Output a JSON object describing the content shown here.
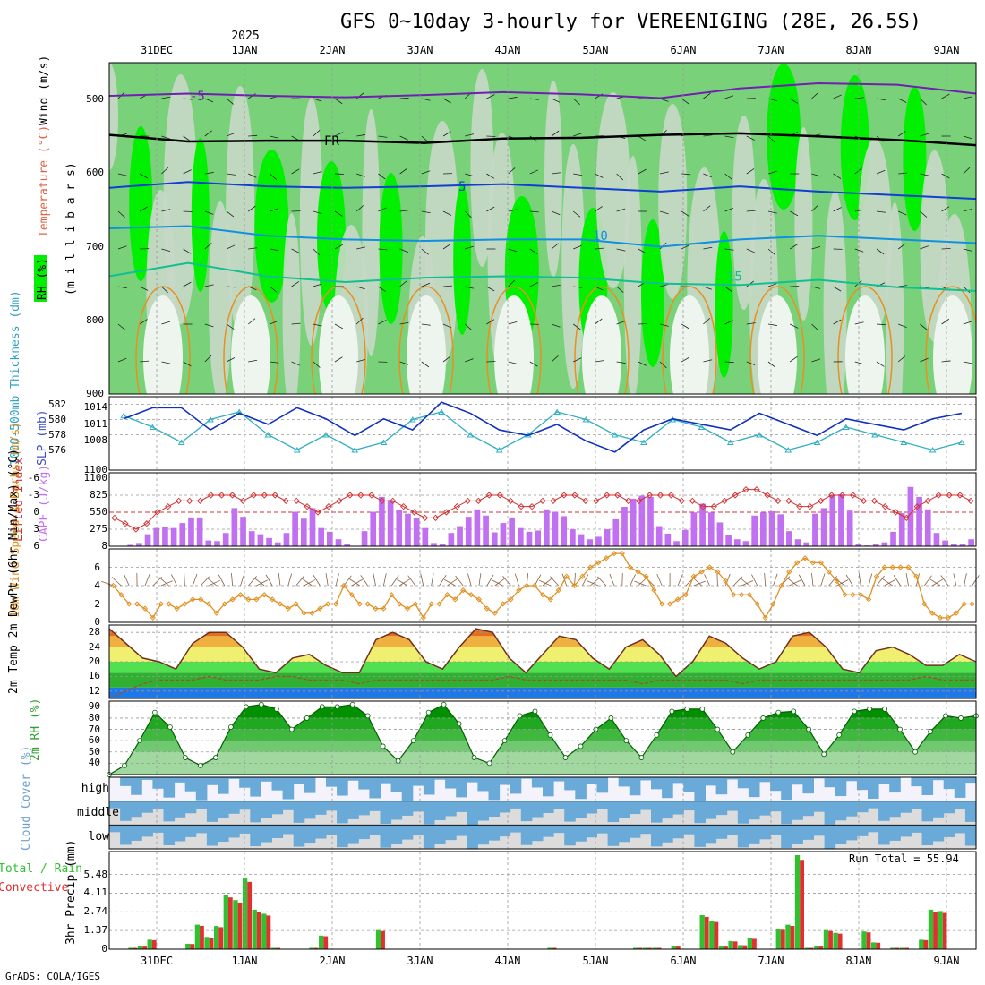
{
  "title": "GFS 0~10day 3-hourly for VEREENIGING (28E, 26.5S)",
  "year_label": "2025",
  "footer": "GrADS: COLA/IGES",
  "run_total_label": "Run Total = 55.94",
  "days": [
    "31DEC",
    "1JAN",
    "2JAN",
    "3JAN",
    "4JAN",
    "5JAN",
    "6JAN",
    "7JAN",
    "8JAN",
    "9JAN"
  ],
  "colors": {
    "rh_green": "#79d27a",
    "rh_bright": "#00f000",
    "rh_light": "#c8d8c8",
    "cape": "#c070f0",
    "slp": "#1030c0",
    "thick": "#30b0c0",
    "li": "#d03030",
    "wind": "#e09020",
    "rain": "#30c030",
    "conv": "#e03030",
    "cloud": "#6aaad8"
  },
  "chart_data": [
    {
      "type": "heatmap",
      "panel": "upper_air",
      "ylabel": "(m i l l i b a r s)",
      "ylabel_parts": [
        "RH (%)",
        "Temperature (°C)",
        "Wind (m/s)"
      ],
      "yticks": [
        500,
        600,
        700,
        800,
        900
      ],
      "ylim": [
        450,
        900
      ],
      "contours": [
        {
          "label": "-5",
          "values": [
            495,
            492,
            495,
            497,
            494,
            490,
            493,
            498,
            485,
            478,
            480,
            492
          ]
        },
        {
          "label": "FR",
          "values": [
            548,
            557,
            556,
            556,
            559,
            553,
            552,
            548,
            546,
            550,
            555,
            562
          ]
        },
        {
          "label": "5",
          "values": [
            620,
            612,
            618,
            620,
            618,
            615,
            620,
            625,
            618,
            625,
            630,
            635
          ]
        },
        {
          "label": "10",
          "values": [
            675,
            672,
            685,
            690,
            692,
            690,
            690,
            700,
            690,
            685,
            690,
            695
          ]
        },
        {
          "label": "15",
          "values": [
            740,
            722,
            740,
            748,
            742,
            740,
            742,
            750,
            752,
            745,
            755,
            760
          ]
        }
      ]
    },
    {
      "type": "line",
      "panel": "thickness_slp",
      "ylabel_left": "1000-500mb Thickness (dm)",
      "ylabel_right": "SLP (mb)",
      "yticks_left": [
        576,
        578,
        580,
        582
      ],
      "yticks_right": [
        1008,
        1011,
        1014
      ],
      "y2_extra_tick": 1100,
      "series": [
        {
          "name": "SLP",
          "values": [
            1012,
            1014,
            1014,
            1010,
            1013,
            1011,
            1014,
            1012,
            1009,
            1012,
            1010,
            1015,
            1013,
            1010,
            1009,
            1011,
            1008,
            1006,
            1010,
            1012,
            1011,
            1010,
            1013,
            1011,
            1009,
            1012,
            1011,
            1010,
            1012,
            1013
          ]
        },
        {
          "name": "Thickness",
          "values": [
            580.5,
            579,
            577,
            580,
            581,
            578,
            576,
            578,
            576,
            577,
            580,
            581,
            578,
            576,
            578,
            581,
            580,
            578,
            577,
            580,
            579,
            577,
            578,
            576,
            577,
            579,
            578,
            577,
            576,
            577
          ]
        }
      ]
    },
    {
      "type": "bar",
      "panel": "cape_li",
      "ylabel_left": "Lifted Index",
      "ylabel_right": "CAPE (J/kg)",
      "yticks_left": [
        -6,
        -3,
        0,
        3,
        6
      ],
      "yticks_right": [
        8,
        275,
        550,
        825,
        1100
      ],
      "cape": [
        0,
        0,
        30,
        60,
        200,
        300,
        320,
        300,
        380,
        470,
        470,
        100,
        90,
        220,
        620,
        480,
        250,
        200,
        140,
        70,
        220,
        560,
        450,
        620,
        300,
        240,
        120,
        50,
        0,
        250,
        560,
        800,
        750,
        590,
        530,
        460,
        300,
        60,
        40,
        220,
        330,
        480,
        600,
        500,
        230,
        380,
        470,
        300,
        240,
        260,
        600,
        560,
        490,
        280,
        200,
        120,
        160,
        280,
        440,
        640,
        770,
        820,
        800,
        330,
        210,
        90,
        270,
        550,
        690,
        550,
        390,
        190,
        120,
        90,
        500,
        550,
        570,
        520,
        250,
        120,
        70,
        530,
        620,
        830,
        840,
        580,
        40,
        20,
        50,
        70,
        240,
        540,
        960,
        800,
        600,
        220,
        100,
        40,
        40,
        120
      ],
      "li": [
        1,
        2,
        3,
        2,
        0,
        -1,
        -2,
        -2,
        -2,
        -3,
        -3,
        -3,
        -2,
        -3,
        -3,
        -3,
        -2,
        -2,
        -1,
        0,
        -1,
        -2,
        -3,
        -3,
        -3,
        -2,
        -2,
        -1,
        0,
        1,
        1,
        0,
        -1,
        -2,
        -2,
        -3,
        -3,
        -2,
        -1,
        -1,
        -2,
        -2,
        -3,
        -3,
        -2,
        -2,
        -3,
        -3,
        -2,
        -2,
        -3,
        -3,
        -3,
        -2,
        -2,
        -1,
        -1,
        -2,
        -3,
        -4,
        -4,
        -3,
        -2,
        -2,
        -1,
        -1,
        -2,
        -3,
        -3,
        -3,
        -2,
        -2,
        -1,
        0,
        1,
        -1,
        -2,
        -3,
        -3,
        -3,
        -2
      ]
    },
    {
      "type": "line",
      "panel": "wind10m",
      "ylabel": "10m Wind Speed & Barbs (m/s)",
      "yticks": [
        0,
        2,
        4,
        6
      ],
      "ylim": [
        0,
        8
      ],
      "values": [
        4,
        3,
        2,
        2,
        1.5,
        0.5,
        2,
        2,
        1.5,
        2,
        2.5,
        2.5,
        2,
        1,
        2,
        2.5,
        3,
        2.5,
        2.5,
        3,
        2.5,
        2,
        1.5,
        2,
        1,
        1,
        1.5,
        2,
        2,
        4,
        3,
        2,
        2,
        1.5,
        1.5,
        3,
        2,
        1.5,
        2,
        0.5,
        2,
        2,
        3,
        2.5,
        3.5,
        3,
        2.5,
        1.5,
        1,
        2,
        2.5,
        3.5,
        4,
        4,
        3,
        2.5,
        3.5,
        5,
        4,
        5,
        6,
        6.5,
        7,
        7.5,
        7.5,
        6,
        5.5,
        5,
        3.5,
        2,
        2,
        2.5,
        3,
        5,
        5.5,
        6,
        5.5,
        4.5,
        3,
        3,
        3,
        2,
        0.5,
        2,
        4,
        5.5,
        6.5,
        7,
        6.5,
        6.5,
        5.5,
        4.5,
        3,
        3,
        3,
        2.5,
        5,
        6,
        6,
        6,
        6,
        5,
        2,
        1,
        0.5,
        0.5,
        1,
        2,
        2
      ]
    },
    {
      "type": "area",
      "panel": "temp2m",
      "ylabel": "2m Temp 2m DewPt (6hr Min/Max) (°C)",
      "yticks": [
        12,
        16,
        20,
        24,
        28
      ],
      "ylim": [
        10,
        30
      ],
      "temp": [
        29,
        25,
        21,
        20,
        18,
        25,
        28,
        28,
        24,
        18,
        17,
        21,
        22,
        19,
        17,
        17,
        26,
        28,
        26,
        20,
        18,
        24,
        29,
        28,
        21,
        17,
        22,
        27,
        26,
        21,
        18,
        24,
        26,
        22,
        16,
        20,
        27,
        25,
        21,
        18,
        20,
        27,
        28,
        24,
        18,
        17,
        23,
        24,
        22,
        19,
        19,
        22,
        20
      ],
      "dewpt": [
        10,
        12,
        14,
        15,
        15,
        15,
        16,
        15,
        15,
        15,
        16,
        16,
        15,
        15,
        15,
        14,
        15,
        15,
        15,
        15,
        15,
        15,
        15,
        15,
        16,
        15,
        15,
        15,
        15,
        15,
        15,
        15,
        14,
        15,
        15,
        15,
        15,
        15,
        14,
        15,
        15,
        15,
        15,
        15,
        15,
        15,
        15,
        15,
        15,
        16,
        15,
        15,
        15
      ]
    },
    {
      "type": "area",
      "panel": "rh2m",
      "ylabel": "2m RH (%)",
      "yticks": [
        40,
        50,
        60,
        70,
        80,
        90
      ],
      "ylim": [
        30,
        95
      ],
      "values": [
        30,
        38,
        60,
        85,
        72,
        45,
        38,
        45,
        72,
        90,
        92,
        88,
        70,
        80,
        90,
        90,
        92,
        82,
        55,
        42,
        60,
        85,
        92,
        75,
        45,
        40,
        60,
        82,
        86,
        65,
        45,
        55,
        70,
        80,
        60,
        45,
        65,
        86,
        88,
        88,
        70,
        50,
        65,
        80,
        85,
        86,
        70,
        48,
        65,
        86,
        88,
        88,
        70,
        50,
        68,
        82,
        80,
        82
      ]
    },
    {
      "type": "bar",
      "panel": "cloud_cover",
      "ylabel": "Cloud Cover (%)",
      "row_labels": [
        "high",
        "middle",
        "low"
      ]
    },
    {
      "type": "bar",
      "panel": "precip",
      "ylabel": "3hr Precip (mm)",
      "ylabel_side": [
        "Total / Rain",
        "Convective"
      ],
      "yticks": [
        0,
        1.37,
        2.74,
        4.11,
        5.48
      ],
      "ylim": [
        0,
        6.9
      ],
      "total": [
        0,
        0,
        0.1,
        0.2,
        0.7,
        0,
        0,
        0,
        0.4,
        1.8,
        0.9,
        1.7,
        4.0,
        3.6,
        5.2,
        2.9,
        2.6,
        0.1,
        0,
        0,
        0,
        0.1,
        1.0,
        0,
        0,
        0,
        0,
        0,
        1.4,
        0,
        0,
        0,
        0,
        0,
        0,
        0,
        0,
        0,
        0,
        0,
        0,
        0,
        0,
        0,
        0,
        0,
        0.1,
        0,
        0,
        0,
        0,
        0,
        0,
        0,
        0,
        0.1,
        0.1,
        0.1,
        0,
        0.2,
        0,
        0,
        2.5,
        2.1,
        0.2,
        0.6,
        0.3,
        0.8,
        0,
        0,
        1.5,
        1.8,
        6.9,
        0.1,
        0.2,
        1.4,
        1.2,
        0,
        0,
        1.3,
        0.5,
        0,
        0.1,
        0.1,
        0,
        0.7,
        2.9,
        2.8,
        0,
        0,
        0
      ]
    }
  ]
}
